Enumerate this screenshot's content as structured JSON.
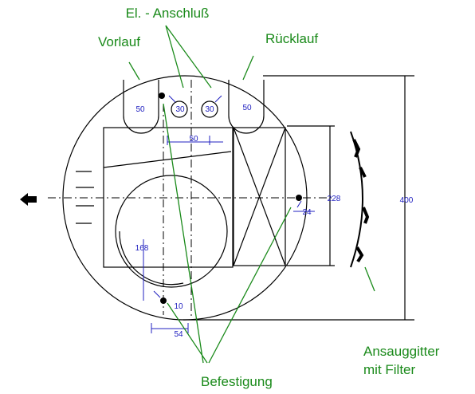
{
  "labels": {
    "el_anschluss": "El. - Anschluß",
    "vorlauf": "Vorlauf",
    "ruecklauf": "Rücklauf",
    "ansauggitter": "Ansauggitter",
    "mit_filter": "mit Filter",
    "befestigung": "Befestigung"
  },
  "dimensions": {
    "pocket_left": 50,
    "pipe_left": 30,
    "pipe_right": 30,
    "pocket_right": 50,
    "pipe_spacing": 50,
    "box_height": 228,
    "diameter": 400,
    "hole_offset": 24,
    "height_168": 168,
    "hole_10": 10,
    "width_54": 54
  }
}
